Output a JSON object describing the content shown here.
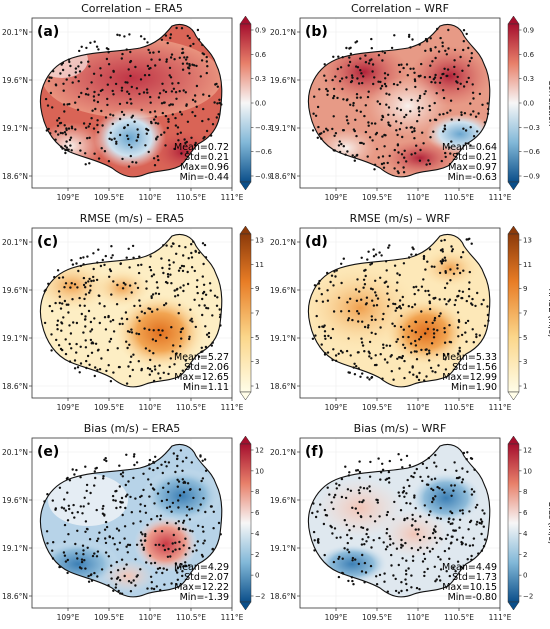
{
  "panels": [
    {
      "letter": "(a)",
      "title": "Correlation – ERA5",
      "stats": [
        "Mean=0.72",
        "Std=0.21",
        "Max=0.96",
        "Min=-0.44"
      ]
    },
    {
      "letter": "(b)",
      "title": "Correlation – WRF",
      "stats": [
        "Mean=0.64",
        "Std=0.21",
        "Max=0.97",
        "Min=-0.63"
      ]
    },
    {
      "letter": "(c)",
      "title": "RMSE (m/s) – ERA5",
      "stats": [
        "Mean=5.27",
        "Std=2.06",
        "Max=12.65",
        "Min=1.11"
      ]
    },
    {
      "letter": "(d)",
      "title": "RMSE (m/s) – WRF",
      "stats": [
        "Mean=5.33",
        "Std=1.56",
        "Max=12.99",
        "Min=1.90"
      ]
    },
    {
      "letter": "(e)",
      "title": "Bias (m/s) – ERA5",
      "stats": [
        "Mean=4.29",
        "Std=2.07",
        "Max=12.22",
        "Min=-1.39"
      ]
    },
    {
      "letter": "(f)",
      "title": "Bias (m/s) – WRF",
      "stats": [
        "Mean=4.49",
        "Std=1.73",
        "Max=10.15",
        "Min=-0.80"
      ]
    }
  ],
  "lon_ticks": [
    "109°E",
    "109.5°E",
    "110°E",
    "110.5°E",
    "111°E"
  ],
  "lat_ticks": [
    "20.1°N",
    "19.6°N",
    "19.1°N",
    "18.6°N"
  ],
  "colorbars": [
    {
      "label": "Correlation",
      "ticks": [
        "0.9",
        "0.6",
        "0.3",
        "0.0",
        "−0.3",
        "−0.6",
        "−0.9"
      ]
    },
    {
      "label": "RMSE (m/s)",
      "ticks": [
        "13",
        "11",
        "9",
        "7",
        "5",
        "3",
        "1"
      ]
    },
    {
      "label": "Bias (m/s)",
      "ticks": [
        "12",
        "10",
        "8",
        "6",
        "4",
        "2",
        "0",
        "−2"
      ]
    }
  ]
}
